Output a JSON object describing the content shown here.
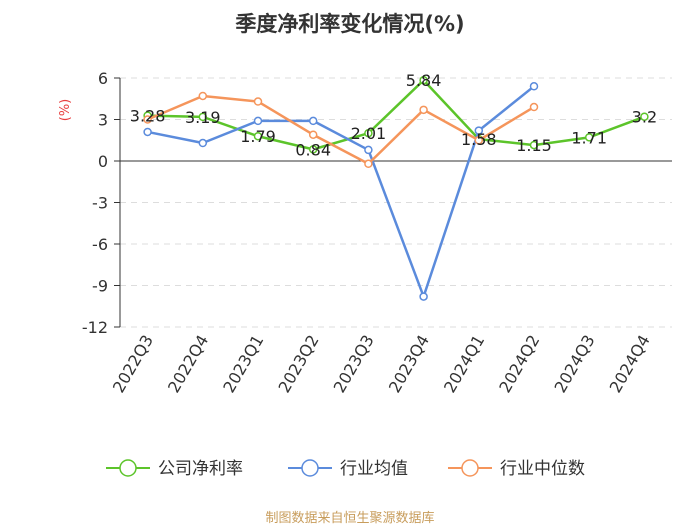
{
  "title": "季度净利率变化情况(%)",
  "source": "制图数据来自恒生聚源数据库",
  "chart_data": {
    "type": "line",
    "ylabel": "(%)",
    "ylim": [
      -12,
      6
    ],
    "yticks": [
      6,
      3,
      0,
      -3,
      -6,
      -9,
      -12
    ],
    "ytick_labels": [
      "6",
      "3",
      "0",
      "-3",
      "-6",
      "-9",
      "-12"
    ],
    "grid": true,
    "legend_position": "bottom",
    "categories": [
      "2022Q3",
      "2022Q4",
      "2023Q1",
      "2023Q2",
      "2023Q3",
      "2023Q4",
      "2024Q1",
      "2024Q2",
      "2024Q3",
      "2024Q4"
    ],
    "series": [
      {
        "name": "公司净利率",
        "color": "#5cc42a",
        "values": [
          3.28,
          3.19,
          1.79,
          0.84,
          2.01,
          5.84,
          1.58,
          1.15,
          1.71,
          3.2
        ],
        "labels": [
          "3.28",
          "3.19",
          "1.79",
          "0.84",
          "2.01",
          "5.84",
          "1.58",
          "1.15",
          "1.71",
          "3.2"
        ]
      },
      {
        "name": "行业均值",
        "color": "#5b8bdc",
        "values": [
          2.1,
          1.3,
          2.9,
          2.9,
          0.8,
          -9.8,
          2.2,
          5.4,
          null,
          null
        ]
      },
      {
        "name": "行业中位数",
        "color": "#f5955b",
        "values": [
          3.0,
          4.7,
          4.3,
          1.9,
          -0.2,
          3.7,
          1.5,
          3.9,
          null,
          null
        ]
      }
    ]
  }
}
